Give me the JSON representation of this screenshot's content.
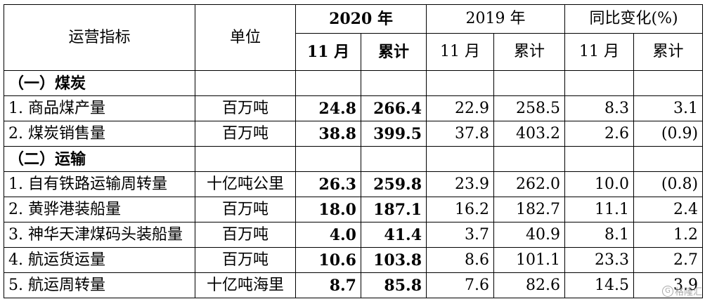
{
  "header": {
    "metric": "运营指标",
    "unit": "单位",
    "year2020": "2020 年",
    "year2019": "2019 年",
    "yoy": "同比变化(%)",
    "nov": "11 月",
    "cum": "累计"
  },
  "sections": {
    "coal": "（一）煤炭",
    "transport": "（二）运输"
  },
  "rows": [
    {
      "name": "1. 商品煤产量",
      "unit": "百万吨",
      "nov2020": "24.8",
      "cum2020": "266.4",
      "nov2019": "22.9",
      "cum2019": "258.5",
      "yoy_nov": "8.3",
      "yoy_cum": "3.1"
    },
    {
      "name": "2. 煤炭销售量",
      "unit": "百万吨",
      "nov2020": "38.8",
      "cum2020": "399.5",
      "nov2019": "37.8",
      "cum2019": "403.2",
      "yoy_nov": "2.6",
      "yoy_cum": "(0.9)"
    },
    {
      "name": "1. 自有铁路运输周转量",
      "unit": "十亿吨公里",
      "nov2020": "26.3",
      "cum2020": "259.8",
      "nov2019": "23.9",
      "cum2019": "262.0",
      "yoy_nov": "10.0",
      "yoy_cum": "(0.8)"
    },
    {
      "name": "2. 黄骅港装船量",
      "unit": "百万吨",
      "nov2020": "18.0",
      "cum2020": "187.1",
      "nov2019": "16.2",
      "cum2019": "182.7",
      "yoy_nov": "11.1",
      "yoy_cum": "2.4"
    },
    {
      "name": "3. 神华天津煤码头装船量",
      "unit": "百万吨",
      "nov2020": "4.0",
      "cum2020": "41.4",
      "nov2019": "3.7",
      "cum2019": "40.9",
      "yoy_nov": "8.1",
      "yoy_cum": "1.2"
    },
    {
      "name": "4. 航运货运量",
      "unit": "百万吨",
      "nov2020": "10.6",
      "cum2020": "103.8",
      "nov2019": "8.6",
      "cum2019": "101.1",
      "yoy_nov": "23.3",
      "yoy_cum": "2.7"
    },
    {
      "name": "5. 航运周转量",
      "unit": "十亿吨海里",
      "nov2020": "8.7",
      "cum2020": "85.8",
      "nov2019": "7.6",
      "cum2019": "82.6",
      "yoy_nov": "14.5",
      "yoy_cum": "3.9"
    }
  ],
  "watermark": {
    "logo": "G",
    "text": "格隆汇"
  }
}
